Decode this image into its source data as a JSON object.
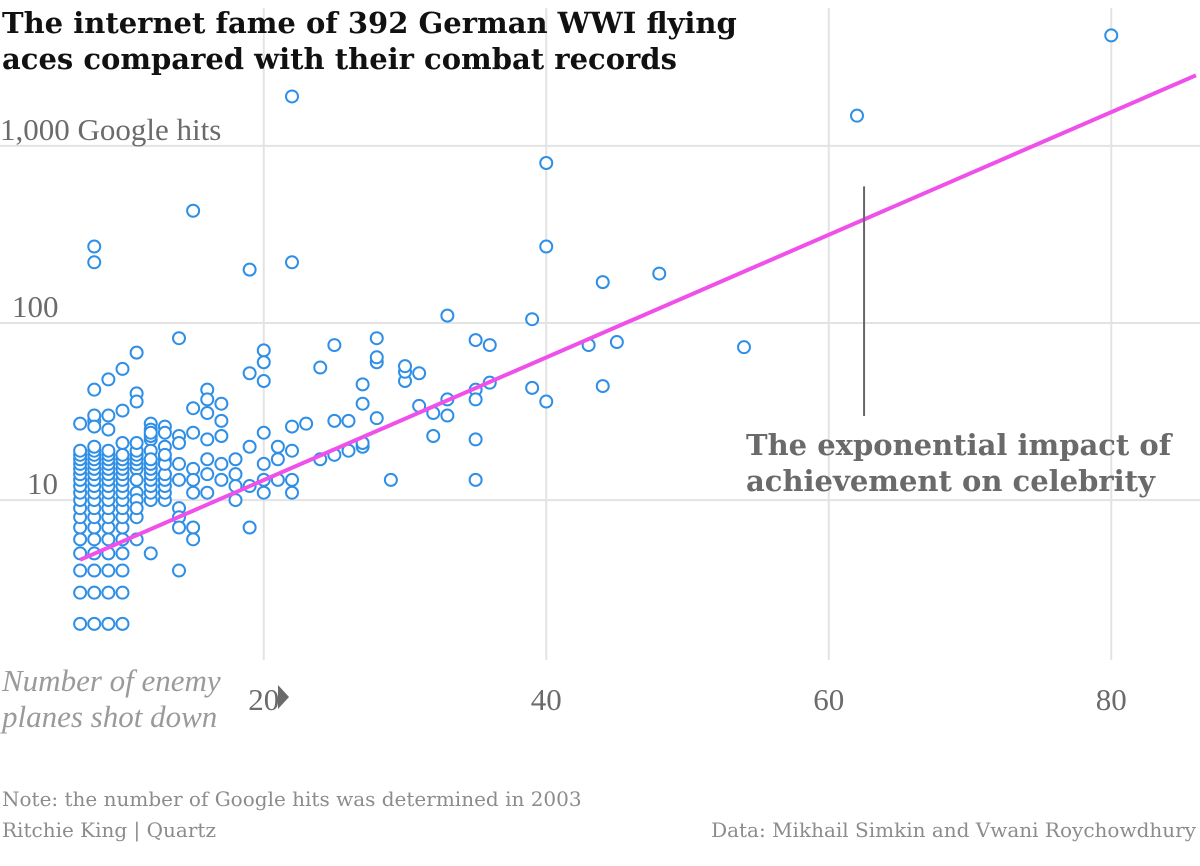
{
  "chart_data": {
    "type": "scatter",
    "title": "The internet fame of 392 German WWI flying aces compared with their combat records",
    "title_lines": [
      "The internet fame of 392 German WWI flying",
      "aces compared with their combat records"
    ],
    "xlabel_lines": [
      "Number of enemy",
      "planes shot down"
    ],
    "y_scale": "log",
    "xlim": [
      6,
      86
    ],
    "ylim": [
      1.5,
      6000
    ],
    "x_ticks": [
      {
        "value": 20,
        "label": "20"
      },
      {
        "value": 40,
        "label": "40"
      },
      {
        "value": 60,
        "label": "60"
      },
      {
        "value": 80,
        "label": "80"
      }
    ],
    "y_ticks": [
      {
        "value": 10,
        "label": "10"
      },
      {
        "value": 100,
        "label": "100"
      },
      {
        "value": 1000,
        "label": "1,000 Google hits"
      }
    ],
    "grid": true,
    "trendline": {
      "x": [
        7,
        86
      ],
      "y": [
        4.6,
        2500
      ]
    },
    "annotation": {
      "text_lines": [
        "The exponential impact of",
        "achievement on celebrity"
      ],
      "x": 62.5,
      "y": 590
    },
    "points": [
      [
        80,
        4200
      ],
      [
        62,
        1480
      ],
      [
        22,
        1900
      ],
      [
        40,
        800
      ],
      [
        15,
        430
      ],
      [
        40,
        270
      ],
      [
        22,
        220
      ],
      [
        19,
        200
      ],
      [
        8,
        270
      ],
      [
        8,
        220
      ],
      [
        48,
        190
      ],
      [
        44,
        170
      ],
      [
        33,
        110
      ],
      [
        39,
        105
      ],
      [
        14,
        82
      ],
      [
        20,
        70
      ],
      [
        25,
        75
      ],
      [
        28,
        82
      ],
      [
        35,
        80
      ],
      [
        36,
        75
      ],
      [
        43,
        75
      ],
      [
        45,
        78
      ],
      [
        54,
        73
      ],
      [
        10,
        55
      ],
      [
        11,
        68
      ],
      [
        9,
        48
      ],
      [
        19,
        52
      ],
      [
        20,
        47
      ],
      [
        20,
        60
      ],
      [
        24,
        56
      ],
      [
        27,
        45
      ],
      [
        28,
        60
      ],
      [
        28,
        64
      ],
      [
        30,
        47
      ],
      [
        30,
        53
      ],
      [
        30,
        57
      ],
      [
        31,
        52
      ],
      [
        35,
        42
      ],
      [
        36,
        46
      ],
      [
        39,
        43
      ],
      [
        40,
        36
      ],
      [
        44,
        44
      ],
      [
        22,
        26
      ],
      [
        23,
        27
      ],
      [
        25,
        28
      ],
      [
        26,
        28
      ],
      [
        27,
        35
      ],
      [
        28,
        29
      ],
      [
        31,
        34
      ],
      [
        32,
        31
      ],
      [
        33,
        30
      ],
      [
        33,
        37
      ],
      [
        35,
        37
      ],
      [
        35,
        22
      ],
      [
        32,
        23
      ],
      [
        27,
        20
      ],
      [
        26,
        19
      ],
      [
        25,
        18
      ],
      [
        24,
        17
      ],
      [
        27,
        21
      ],
      [
        8,
        42
      ],
      [
        8,
        28
      ],
      [
        8,
        30
      ],
      [
        9,
        30
      ],
      [
        10,
        32
      ],
      [
        11,
        40
      ],
      [
        11,
        36
      ],
      [
        12,
        27
      ],
      [
        12,
        25
      ],
      [
        14,
        23
      ],
      [
        15,
        33
      ],
      [
        16,
        42
      ],
      [
        16,
        37
      ],
      [
        16,
        31
      ],
      [
        17,
        35
      ],
      [
        17,
        28
      ],
      [
        15,
        24
      ],
      [
        16,
        22
      ],
      [
        17,
        23
      ],
      [
        19,
        20
      ],
      [
        20,
        24
      ],
      [
        21,
        20
      ],
      [
        22,
        19
      ],
      [
        20,
        16
      ],
      [
        20,
        13
      ],
      [
        21,
        13
      ],
      [
        21,
        17
      ],
      [
        22,
        13
      ],
      [
        22,
        11
      ],
      [
        20,
        11
      ],
      [
        18,
        10
      ],
      [
        16,
        11
      ],
      [
        15,
        11
      ],
      [
        19,
        7
      ],
      [
        29,
        13
      ],
      [
        35,
        13
      ],
      [
        12,
        22
      ],
      [
        13,
        20
      ],
      [
        12,
        19
      ],
      [
        13,
        17
      ],
      [
        14,
        16
      ],
      [
        15,
        15
      ],
      [
        16,
        14
      ],
      [
        17,
        13
      ],
      [
        18,
        12
      ],
      [
        19,
        12
      ],
      [
        17,
        16
      ],
      [
        18,
        17
      ],
      [
        18,
        14
      ],
      [
        16,
        17
      ],
      [
        14,
        13
      ],
      [
        15,
        13
      ],
      [
        13,
        14
      ],
      [
        14,
        9
      ],
      [
        14,
        8
      ],
      [
        14,
        7
      ],
      [
        15,
        7
      ],
      [
        15,
        6
      ],
      [
        14,
        4
      ],
      [
        12,
        5
      ],
      [
        11,
        6
      ],
      [
        10,
        3
      ],
      [
        11,
        15
      ],
      [
        11,
        13
      ],
      [
        11,
        11
      ],
      [
        11,
        10
      ],
      [
        7,
        2
      ],
      [
        8,
        2
      ],
      [
        9,
        2
      ],
      [
        10,
        2
      ],
      [
        7,
        3
      ],
      [
        8,
        3
      ],
      [
        9,
        3
      ],
      [
        7,
        4
      ],
      [
        8,
        4
      ],
      [
        9,
        4
      ],
      [
        10,
        4
      ],
      [
        7,
        5
      ],
      [
        8,
        5
      ],
      [
        9,
        5
      ],
      [
        10,
        5
      ],
      [
        7,
        6
      ],
      [
        8,
        6
      ],
      [
        9,
        6
      ],
      [
        10,
        6
      ],
      [
        7,
        7
      ],
      [
        8,
        7
      ],
      [
        9,
        7
      ],
      [
        10,
        7
      ],
      [
        7,
        8
      ],
      [
        8,
        8
      ],
      [
        9,
        8
      ],
      [
        10,
        8
      ],
      [
        11,
        8
      ],
      [
        7,
        9
      ],
      [
        8,
        9
      ],
      [
        9,
        9
      ],
      [
        10,
        9
      ],
      [
        11,
        9
      ],
      [
        7,
        10
      ],
      [
        8,
        10
      ],
      [
        9,
        10
      ],
      [
        10,
        10
      ],
      [
        12,
        10
      ],
      [
        13,
        10
      ],
      [
        7,
        11
      ],
      [
        8,
        11
      ],
      [
        9,
        11
      ],
      [
        10,
        11
      ],
      [
        12,
        11
      ],
      [
        13,
        11
      ],
      [
        7,
        12
      ],
      [
        8,
        12
      ],
      [
        9,
        12
      ],
      [
        10,
        12
      ],
      [
        12,
        12
      ],
      [
        13,
        12
      ],
      [
        7,
        13
      ],
      [
        8,
        13
      ],
      [
        9,
        13
      ],
      [
        10,
        13
      ],
      [
        12,
        13
      ],
      [
        13,
        13
      ],
      [
        7,
        14
      ],
      [
        8,
        14
      ],
      [
        9,
        14
      ],
      [
        10,
        14
      ],
      [
        12,
        14
      ],
      [
        13,
        14
      ],
      [
        7,
        15
      ],
      [
        8,
        15
      ],
      [
        9,
        15
      ],
      [
        10,
        15
      ],
      [
        12,
        15
      ],
      [
        7,
        16
      ],
      [
        8,
        16
      ],
      [
        9,
        16
      ],
      [
        10,
        16
      ],
      [
        11,
        16
      ],
      [
        12,
        16
      ],
      [
        7,
        17
      ],
      [
        8,
        17
      ],
      [
        9,
        17
      ],
      [
        10,
        17
      ],
      [
        11,
        17
      ],
      [
        12,
        17
      ],
      [
        13,
        16
      ],
      [
        7,
        18
      ],
      [
        8,
        18
      ],
      [
        9,
        18
      ],
      [
        10,
        18
      ],
      [
        11,
        18
      ],
      [
        7,
        19
      ],
      [
        8,
        19
      ],
      [
        9,
        19
      ],
      [
        11,
        19
      ],
      [
        13,
        18
      ],
      [
        8,
        20
      ],
      [
        10,
        21
      ],
      [
        12,
        23
      ],
      [
        12,
        24
      ],
      [
        13,
        26
      ],
      [
        9,
        25
      ],
      [
        8,
        26
      ],
      [
        7,
        27
      ],
      [
        13,
        24
      ],
      [
        11,
        21
      ],
      [
        14,
        21
      ]
    ]
  },
  "footer": {
    "note": "Note: the number of Google hits was determined in 2003",
    "credit": "Ritchie King | Quartz",
    "source": "Data: Mikhail Simkin and Vwani Roychowdhury"
  },
  "colors": {
    "points": "#2f8fe6",
    "trend": "#f050ea"
  }
}
